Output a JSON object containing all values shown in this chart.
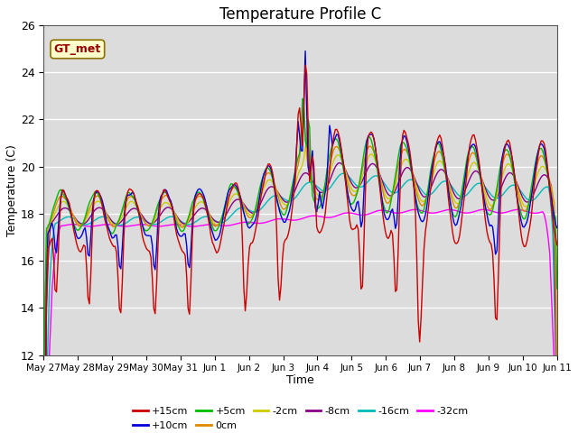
{
  "title": "Temperature Profile C",
  "xlabel": "Time",
  "ylabel": "Temperature (C)",
  "ylim": [
    12,
    26
  ],
  "plot_bg_color": "#dcdcdc",
  "grid_color": "#ffffff",
  "series": {
    "+15cm": {
      "color": "#cc0000",
      "lw": 1.0
    },
    "+10cm": {
      "color": "#0000dd",
      "lw": 1.0
    },
    "+5cm": {
      "color": "#00bb00",
      "lw": 1.0
    },
    "0cm": {
      "color": "#dd8800",
      "lw": 1.0
    },
    "-2cm": {
      "color": "#cccc00",
      "lw": 1.0
    },
    "-8cm": {
      "color": "#880088",
      "lw": 1.0
    },
    "-16cm": {
      "color": "#00bbbb",
      "lw": 1.0
    },
    "-32cm": {
      "color": "#ff00ff",
      "lw": 1.0
    }
  },
  "x_tick_labels": [
    "May 27",
    "May 28",
    "May 29",
    "May 30",
    "May 31",
    "Jun 1",
    "Jun 2",
    "Jun 3",
    "Jun 4",
    "Jun 5",
    "Jun 6",
    "Jun 7",
    "Jun 8",
    "Jun 9",
    "Jun 10",
    "Jun 11"
  ],
  "annotation_text": "GT_met",
  "yticks": [
    12,
    14,
    16,
    18,
    20,
    22,
    24,
    26
  ]
}
